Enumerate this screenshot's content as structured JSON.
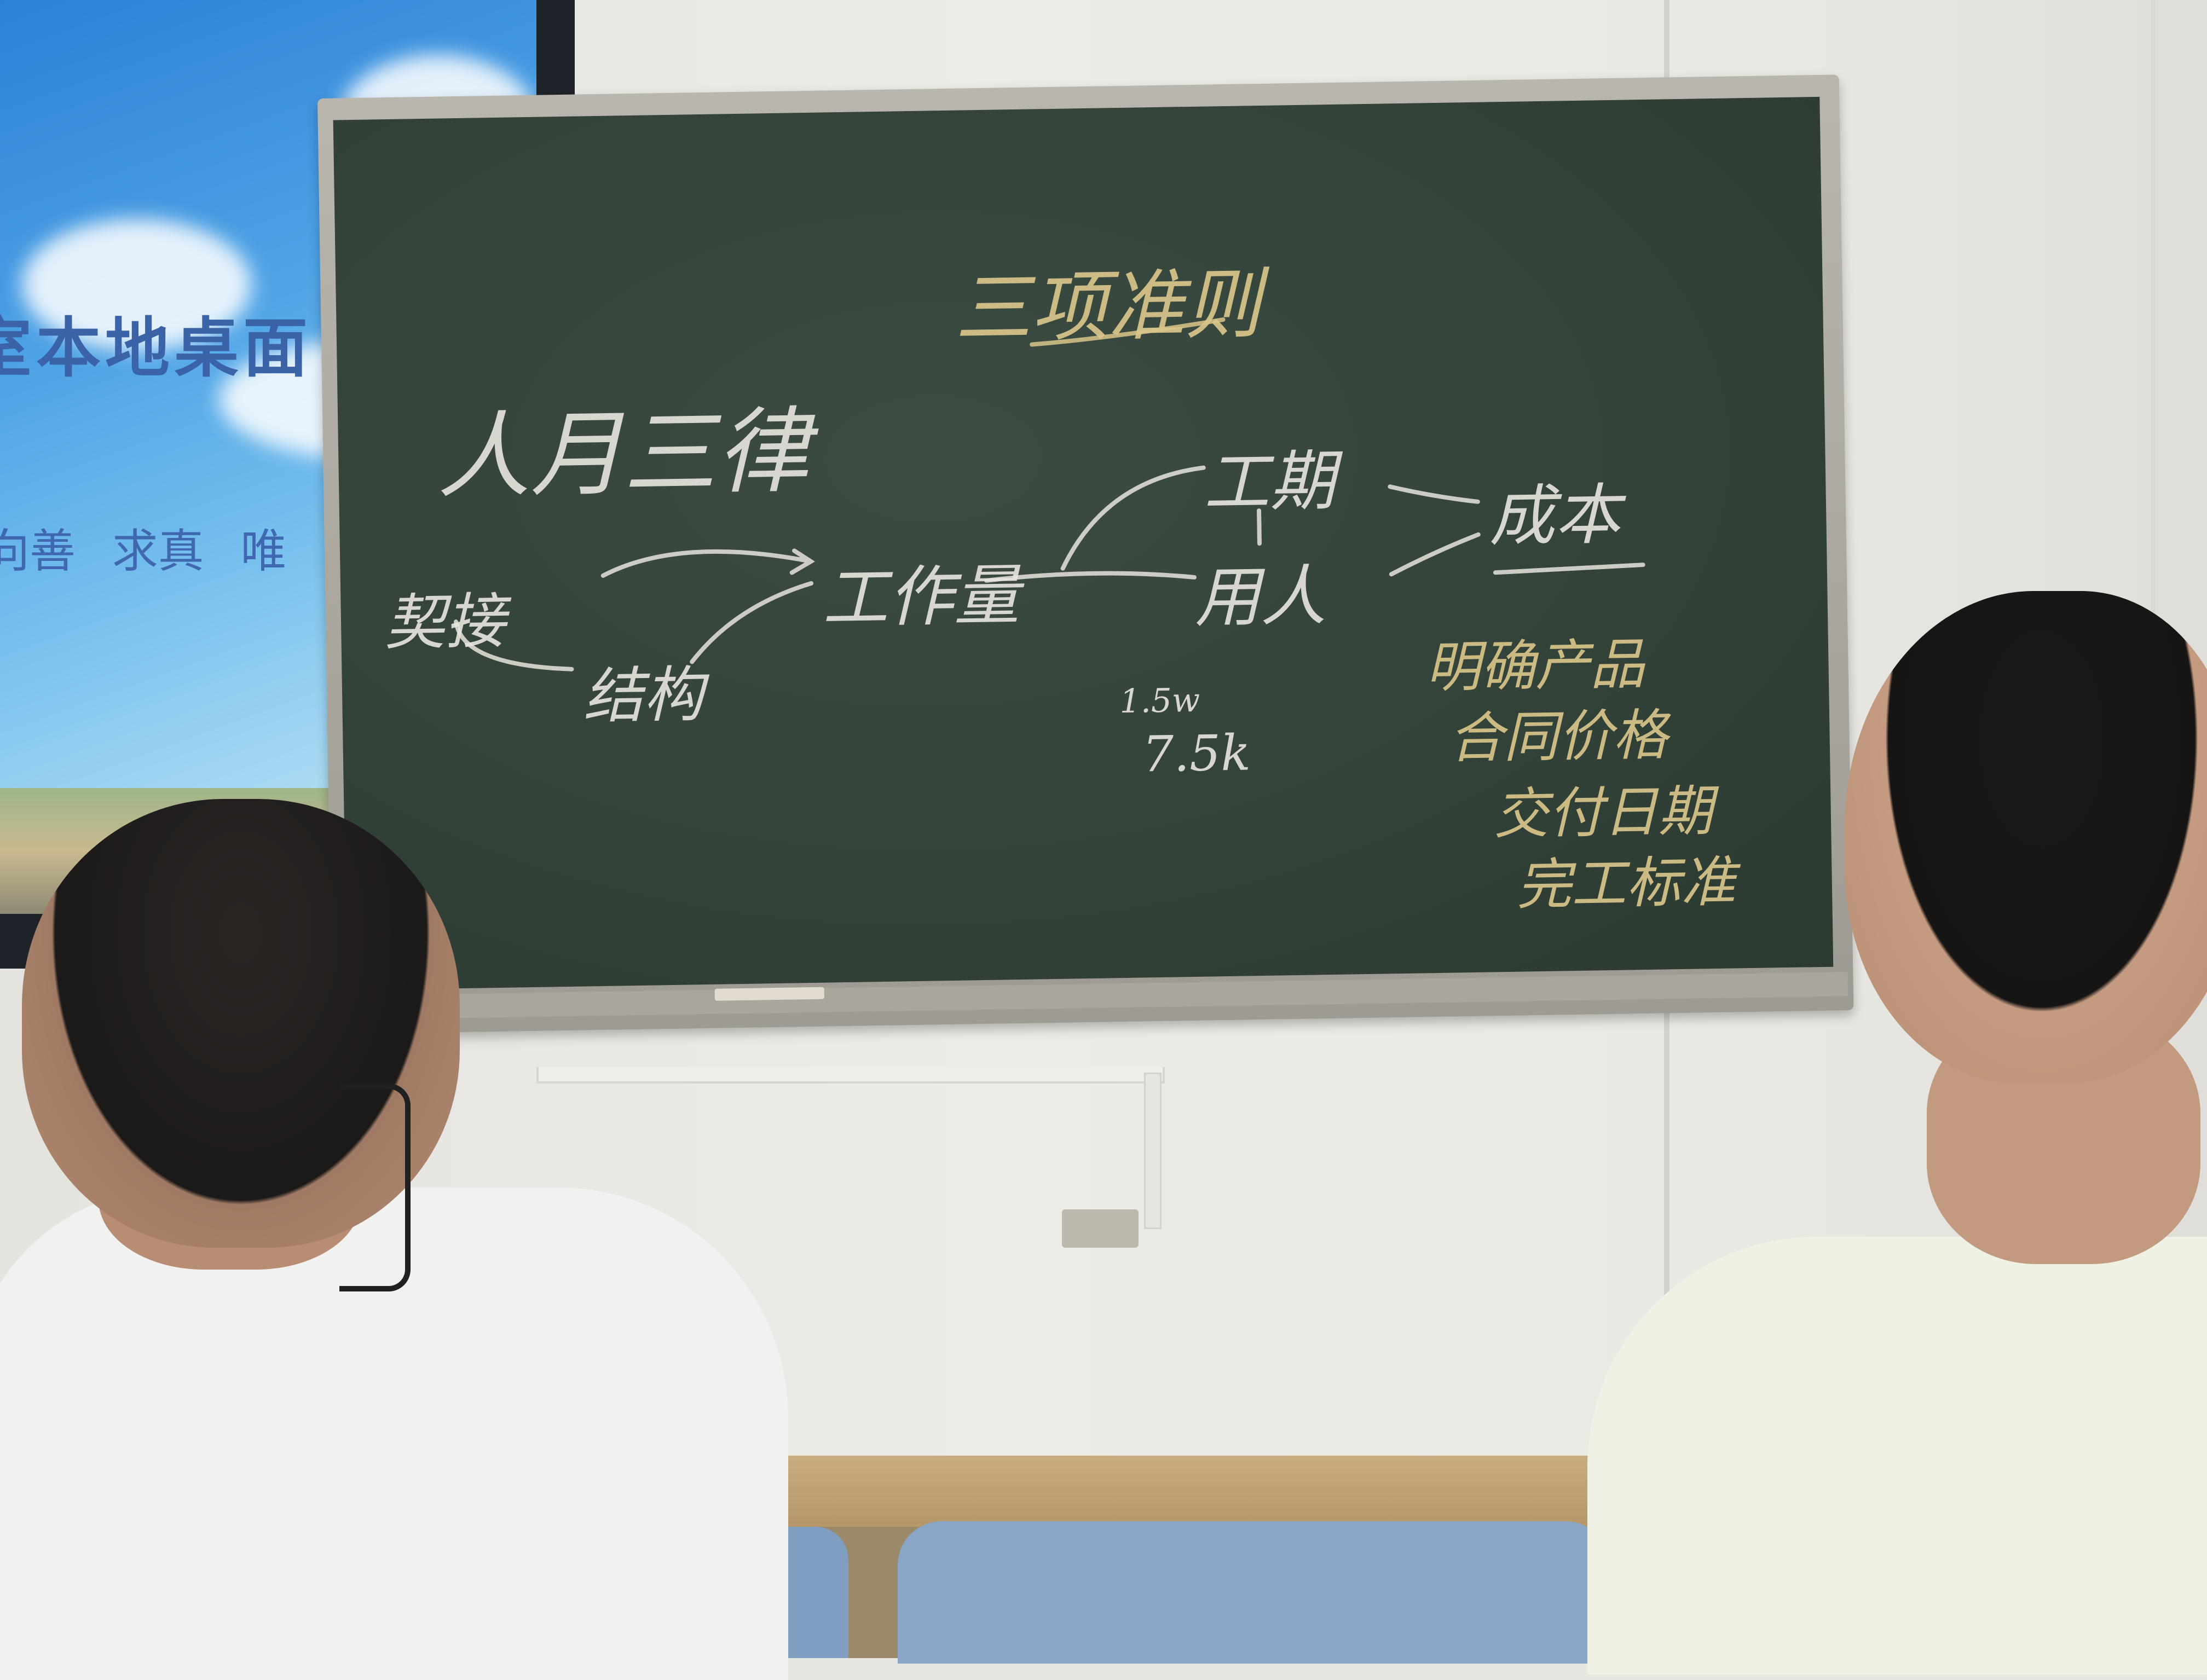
{
  "scene": {
    "type": "classroom-photo",
    "colors": {
      "board": "#34443a",
      "chalk_white": "#e6e4dc",
      "chalk_yellow": "#d9c58a",
      "screen_blue": "#4ea3e6"
    }
  },
  "projector_screen": {
    "title": "室本地桌面",
    "motto": "向善 求真 唯"
  },
  "chalkboard": {
    "heading": "三项准则",
    "left_title": "人月三律",
    "flow": {
      "start": "契接",
      "branch": "结构",
      "middle": "工作量",
      "top": "工期",
      "bottom": "用人",
      "end": "成本"
    },
    "numbers": [
      "1.5w",
      "7.5k"
    ],
    "notes": [
      "明确产品",
      "合同价格",
      "交付日期",
      "完工标准"
    ]
  },
  "icons": [
    "water-bottle-icon",
    "chalk-icon"
  ]
}
